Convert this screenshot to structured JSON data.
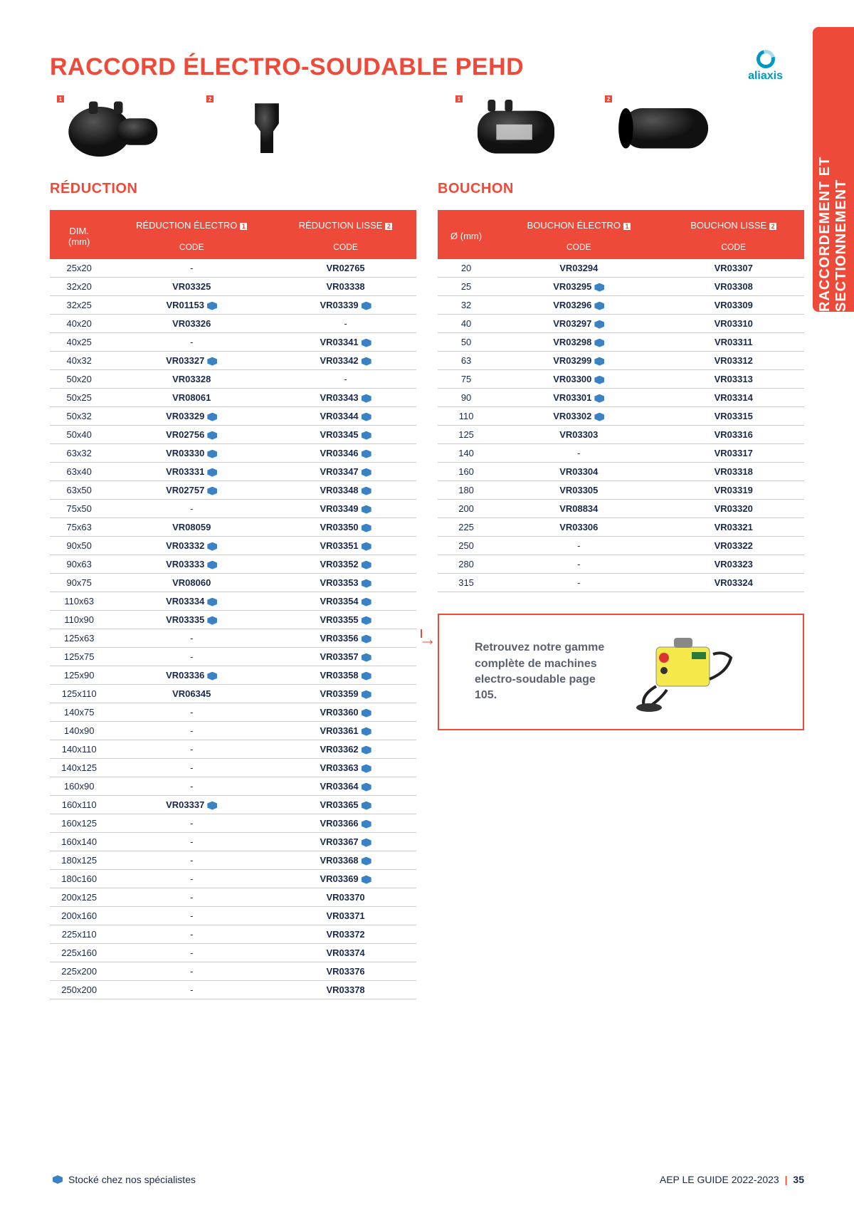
{
  "page_title": "RACCORD ÉLECTRO-SOUDABLE PEHD",
  "brand_name": "aliaxis",
  "side_tab": "RACCORDEMENT ET SECTIONNEMENT",
  "section_left": "RÉDUCTION",
  "section_right": "BOUCHON",
  "headers_left": {
    "dim": "DIM.\n(mm)",
    "col1": "RÉDUCTION ÉLECTRO",
    "col2": "RÉDUCTION LISSE",
    "code": "CODE"
  },
  "headers_right": {
    "dim": "Ø (mm)",
    "col1": "BOUCHON ÉLECTRO",
    "col2": "BOUCHON LISSE",
    "code": "CODE"
  },
  "product_tags": [
    "1",
    "2",
    "1",
    "2"
  ],
  "left_rows": [
    {
      "d": "25x20",
      "c1": "-",
      "s1": false,
      "c2": "VR02765",
      "s2": false
    },
    {
      "d": "32x20",
      "c1": "VR03325",
      "s1": false,
      "c2": "VR03338",
      "s2": false
    },
    {
      "d": "32x25",
      "c1": "VR01153",
      "s1": true,
      "c2": "VR03339",
      "s2": true
    },
    {
      "d": "40x20",
      "c1": "VR03326",
      "s1": false,
      "c2": "-",
      "s2": false
    },
    {
      "d": "40x25",
      "c1": "-",
      "s1": false,
      "c2": "VR03341",
      "s2": true
    },
    {
      "d": "40x32",
      "c1": "VR03327",
      "s1": true,
      "c2": "VR03342",
      "s2": true
    },
    {
      "d": "50x20",
      "c1": "VR03328",
      "s1": false,
      "c2": "-",
      "s2": false
    },
    {
      "d": "50x25",
      "c1": "VR08061",
      "s1": false,
      "c2": "VR03343",
      "s2": true
    },
    {
      "d": "50x32",
      "c1": "VR03329",
      "s1": true,
      "c2": "VR03344",
      "s2": true
    },
    {
      "d": "50x40",
      "c1": "VR02756",
      "s1": true,
      "c2": "VR03345",
      "s2": true
    },
    {
      "d": "63x32",
      "c1": "VR03330",
      "s1": true,
      "c2": "VR03346",
      "s2": true
    },
    {
      "d": "63x40",
      "c1": "VR03331",
      "s1": true,
      "c2": "VR03347",
      "s2": true
    },
    {
      "d": "63x50",
      "c1": "VR02757",
      "s1": true,
      "c2": "VR03348",
      "s2": true
    },
    {
      "d": "75x50",
      "c1": "-",
      "s1": false,
      "c2": "VR03349",
      "s2": true
    },
    {
      "d": "75x63",
      "c1": "VR08059",
      "s1": false,
      "c2": "VR03350",
      "s2": true
    },
    {
      "d": "90x50",
      "c1": "VR03332",
      "s1": true,
      "c2": "VR03351",
      "s2": true
    },
    {
      "d": "90x63",
      "c1": "VR03333",
      "s1": true,
      "c2": "VR03352",
      "s2": true
    },
    {
      "d": "90x75",
      "c1": "VR08060",
      "s1": false,
      "c2": "VR03353",
      "s2": true
    },
    {
      "d": "110x63",
      "c1": "VR03334",
      "s1": true,
      "c2": "VR03354",
      "s2": true
    },
    {
      "d": "110x90",
      "c1": "VR03335",
      "s1": true,
      "c2": "VR03355",
      "s2": true
    },
    {
      "d": "125x63",
      "c1": "-",
      "s1": false,
      "c2": "VR03356",
      "s2": true
    },
    {
      "d": "125x75",
      "c1": "-",
      "s1": false,
      "c2": "VR03357",
      "s2": true
    },
    {
      "d": "125x90",
      "c1": "VR03336",
      "s1": true,
      "c2": "VR03358",
      "s2": true
    },
    {
      "d": "125x110",
      "c1": "VR06345",
      "s1": false,
      "c2": "VR03359",
      "s2": true
    },
    {
      "d": "140x75",
      "c1": "-",
      "s1": false,
      "c2": "VR03360",
      "s2": true
    },
    {
      "d": "140x90",
      "c1": "-",
      "s1": false,
      "c2": "VR03361",
      "s2": true
    },
    {
      "d": "140x110",
      "c1": "-",
      "s1": false,
      "c2": "VR03362",
      "s2": true
    },
    {
      "d": "140x125",
      "c1": "-",
      "s1": false,
      "c2": "VR03363",
      "s2": true
    },
    {
      "d": "160x90",
      "c1": "-",
      "s1": false,
      "c2": "VR03364",
      "s2": true
    },
    {
      "d": "160x110",
      "c1": "VR03337",
      "s1": true,
      "c2": "VR03365",
      "s2": true
    },
    {
      "d": "160x125",
      "c1": "-",
      "s1": false,
      "c2": "VR03366",
      "s2": true
    },
    {
      "d": "160x140",
      "c1": "-",
      "s1": false,
      "c2": "VR03367",
      "s2": true
    },
    {
      "d": "180x125",
      "c1": "-",
      "s1": false,
      "c2": "VR03368",
      "s2": true
    },
    {
      "d": "180c160",
      "c1": "-",
      "s1": false,
      "c2": "VR03369",
      "s2": true
    },
    {
      "d": "200x125",
      "c1": "-",
      "s1": false,
      "c2": "VR03370",
      "s2": false
    },
    {
      "d": "200x160",
      "c1": "-",
      "s1": false,
      "c2": "VR03371",
      "s2": false
    },
    {
      "d": "225x110",
      "c1": "-",
      "s1": false,
      "c2": "VR03372",
      "s2": false
    },
    {
      "d": "225x160",
      "c1": "-",
      "s1": false,
      "c2": "VR03374",
      "s2": false
    },
    {
      "d": "225x200",
      "c1": "-",
      "s1": false,
      "c2": "VR03376",
      "s2": false
    },
    {
      "d": "250x200",
      "c1": "-",
      "s1": false,
      "c2": "VR03378",
      "s2": false
    }
  ],
  "right_rows": [
    {
      "d": "20",
      "c1": "VR03294",
      "s1": false,
      "c2": "VR03307",
      "s2": false
    },
    {
      "d": "25",
      "c1": "VR03295",
      "s1": true,
      "c2": "VR03308",
      "s2": false
    },
    {
      "d": "32",
      "c1": "VR03296",
      "s1": true,
      "c2": "VR03309",
      "s2": false
    },
    {
      "d": "40",
      "c1": "VR03297",
      "s1": true,
      "c2": "VR03310",
      "s2": false
    },
    {
      "d": "50",
      "c1": "VR03298",
      "s1": true,
      "c2": "VR03311",
      "s2": false
    },
    {
      "d": "63",
      "c1": "VR03299",
      "s1": true,
      "c2": "VR03312",
      "s2": false
    },
    {
      "d": "75",
      "c1": "VR03300",
      "s1": true,
      "c2": "VR03313",
      "s2": false
    },
    {
      "d": "90",
      "c1": "VR03301",
      "s1": true,
      "c2": "VR03314",
      "s2": false
    },
    {
      "d": "110",
      "c1": "VR03302",
      "s1": true,
      "c2": "VR03315",
      "s2": false
    },
    {
      "d": "125",
      "c1": "VR03303",
      "s1": false,
      "c2": "VR03316",
      "s2": false
    },
    {
      "d": "140",
      "c1": "-",
      "s1": false,
      "c2": "VR03317",
      "s2": false
    },
    {
      "d": "160",
      "c1": "VR03304",
      "s1": false,
      "c2": "VR03318",
      "s2": false
    },
    {
      "d": "180",
      "c1": "VR03305",
      "s1": false,
      "c2": "VR03319",
      "s2": false
    },
    {
      "d": "200",
      "c1": "VR08834",
      "s1": false,
      "c2": "VR03320",
      "s2": false
    },
    {
      "d": "225",
      "c1": "VR03306",
      "s1": false,
      "c2": "VR03321",
      "s2": false
    },
    {
      "d": "250",
      "c1": "-",
      "s1": false,
      "c2": "VR03322",
      "s2": false
    },
    {
      "d": "280",
      "c1": "-",
      "s1": false,
      "c2": "VR03323",
      "s2": false
    },
    {
      "d": "315",
      "c1": "-",
      "s1": false,
      "c2": "VR03324",
      "s2": false
    }
  ],
  "callout_text": "Retrouvez notre gamme complète de machines electro-soudable page 105.",
  "footer_left": "Stocké chez nos spécialistes",
  "footer_right_text": "AEP LE GUIDE 2022-2023",
  "footer_page": "35",
  "colors": {
    "accent": "#ee4a3a",
    "brand": "#0098c3",
    "text": "#1a2a4a",
    "stock_icon": "#3b82c4",
    "border": "#c9ccd2"
  }
}
